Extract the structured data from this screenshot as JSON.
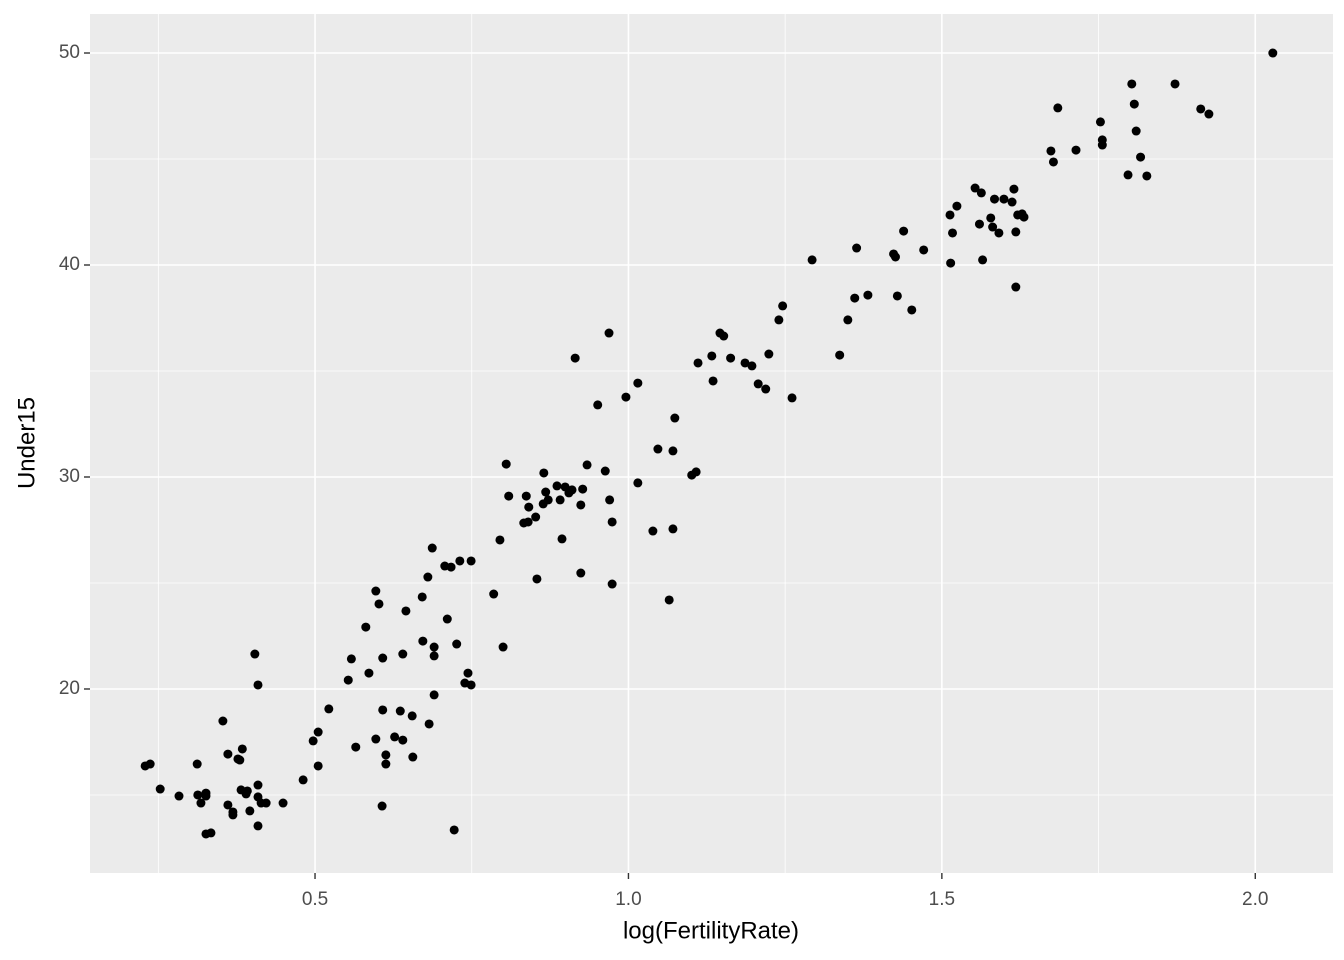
{
  "chart_data": {
    "type": "scatter",
    "xlabel": "log(FertilityRate)",
    "ylabel": "Under15",
    "xlim": [
      0.141,
      2.124
    ],
    "ylim": [
      11.32,
      51.84
    ],
    "xticks": [
      0.5,
      {
        "value": 1,
        "label": "1.0"
      },
      1.5,
      {
        "value": 2,
        "label": "2.0"
      }
    ],
    "yticks": [
      20,
      30,
      40,
      50
    ],
    "x_minor_grid": [
      0.25,
      0.75,
      1.25,
      1.75
    ],
    "y_minor_grid": [
      15,
      25,
      35,
      45
    ],
    "grid": true,
    "color": "#000000",
    "x": [
      0.229,
      0.237,
      0.253,
      0.283,
      0.312,
      0.313,
      0.318,
      0.326,
      0.326,
      0.326,
      0.334,
      0.353,
      0.361,
      0.361,
      0.369,
      0.369,
      0.377,
      0.382,
      0.384,
      0.38,
      0.39,
      0.392,
      0.396,
      0.404,
      0.409,
      0.409,
      0.409,
      0.409,
      0.414,
      0.422,
      0.449,
      0.481,
      0.497,
      0.505,
      0.505,
      0.522,
      0.553,
      0.558,
      0.565,
      0.581,
      0.586,
      0.597,
      0.597,
      0.602,
      0.607,
      0.608,
      0.608,
      0.613,
      0.613,
      0.627,
      0.636,
      0.64,
      0.64,
      0.645,
      0.655,
      0.656,
      0.671,
      0.672,
      0.68,
      0.682,
      0.687,
      0.69,
      0.69,
      0.69,
      0.707,
      0.711,
      0.717,
      0.722,
      0.726,
      0.731,
      0.739,
      0.744,
      0.749,
      0.749,
      0.785,
      0.795,
      0.8,
      0.805,
      0.809,
      0.833,
      0.837,
      0.84,
      0.841,
      0.852,
      0.854,
      0.865,
      0.864,
      0.868,
      0.872,
      0.886,
      0.891,
      0.894,
      0.899,
      0.905,
      0.91,
      0.915,
      0.924,
      0.924,
      0.927,
      0.934,
      0.951,
      0.963,
      0.969,
      0.97,
      0.974,
      0.974,
      0.996,
      1.015,
      1.015,
      1.039,
      1.047,
      1.065,
      1.071,
      1.071,
      1.074,
      1.101,
      1.108,
      1.111,
      1.133,
      1.135,
      1.146,
      1.152,
      1.163,
      1.186,
      1.197,
      1.207,
      1.219,
      1.224,
      1.24,
      1.246,
      1.261,
      1.293,
      1.337,
      1.35,
      1.361,
      1.364,
      1.382,
      1.423,
      1.426,
      1.429,
      1.439,
      1.452,
      1.471,
      1.513,
      1.514,
      1.517,
      1.524,
      1.553,
      1.56,
      1.563,
      1.565,
      1.578,
      1.581,
      1.584,
      1.591,
      1.599,
      1.612,
      1.615,
      1.618,
      1.618,
      1.621,
      1.628,
      1.631,
      1.674,
      1.678,
      1.685,
      1.714,
      1.753,
      1.756,
      1.756,
      1.797,
      1.803,
      1.807,
      1.81,
      1.817,
      1.827,
      1.872,
      1.913,
      1.926,
      2.028
    ],
    "values": [
      16.37,
      16.46,
      15.28,
      14.95,
      16.46,
      15.0,
      14.62,
      14.95,
      15.09,
      13.16,
      13.21,
      18.49,
      16.93,
      14.53,
      14.2,
      14.06,
      16.7,
      15.24,
      17.17,
      16.65,
      15.05,
      15.19,
      14.25,
      21.65,
      20.19,
      15.47,
      14.91,
      13.54,
      14.62,
      14.62,
      14.62,
      15.71,
      17.55,
      17.97,
      16.37,
      19.06,
      20.42,
      21.42,
      17.26,
      22.92,
      20.75,
      24.62,
      17.64,
      24.01,
      14.48,
      21.46,
      19.01,
      16.89,
      16.46,
      17.74,
      18.96,
      21.65,
      17.59,
      23.68,
      18.73,
      16.79,
      24.34,
      22.26,
      25.28,
      18.35,
      26.65,
      21.98,
      21.56,
      19.72,
      25.8,
      23.3,
      25.75,
      13.35,
      22.12,
      26.04,
      20.28,
      20.75,
      20.19,
      26.04,
      24.48,
      27.03,
      21.98,
      30.61,
      29.1,
      27.83,
      29.1,
      27.88,
      28.58,
      28.11,
      25.19,
      30.19,
      28.73,
      29.29,
      28.92,
      29.58,
      28.92,
      27.08,
      29.53,
      29.25,
      29.39,
      35.61,
      25.47,
      28.68,
      29.43,
      30.57,
      33.4,
      30.28,
      36.79,
      28.92,
      27.88,
      24.95,
      33.77,
      34.43,
      29.72,
      27.45,
      31.32,
      24.2,
      31.23,
      27.55,
      32.78,
      30.09,
      30.24,
      35.38,
      35.71,
      34.53,
      36.79,
      36.65,
      35.61,
      35.38,
      35.24,
      34.39,
      34.15,
      35.8,
      37.41,
      38.07,
      33.73,
      40.24,
      35.75,
      37.41,
      38.44,
      40.8,
      38.58,
      40.52,
      40.38,
      38.54,
      41.6,
      37.88,
      40.71,
      42.36,
      40.09,
      41.51,
      42.78,
      43.63,
      41.93,
      43.4,
      40.24,
      42.22,
      41.79,
      43.11,
      41.51,
      43.11,
      42.97,
      43.58,
      38.96,
      41.56,
      42.36,
      42.41,
      42.26,
      45.38,
      44.86,
      47.41,
      45.42,
      46.75,
      45.9,
      45.66,
      44.25,
      48.54,
      47.59,
      46.32,
      45.09,
      44.2,
      48.54,
      47.36,
      47.12,
      50.0
    ]
  }
}
